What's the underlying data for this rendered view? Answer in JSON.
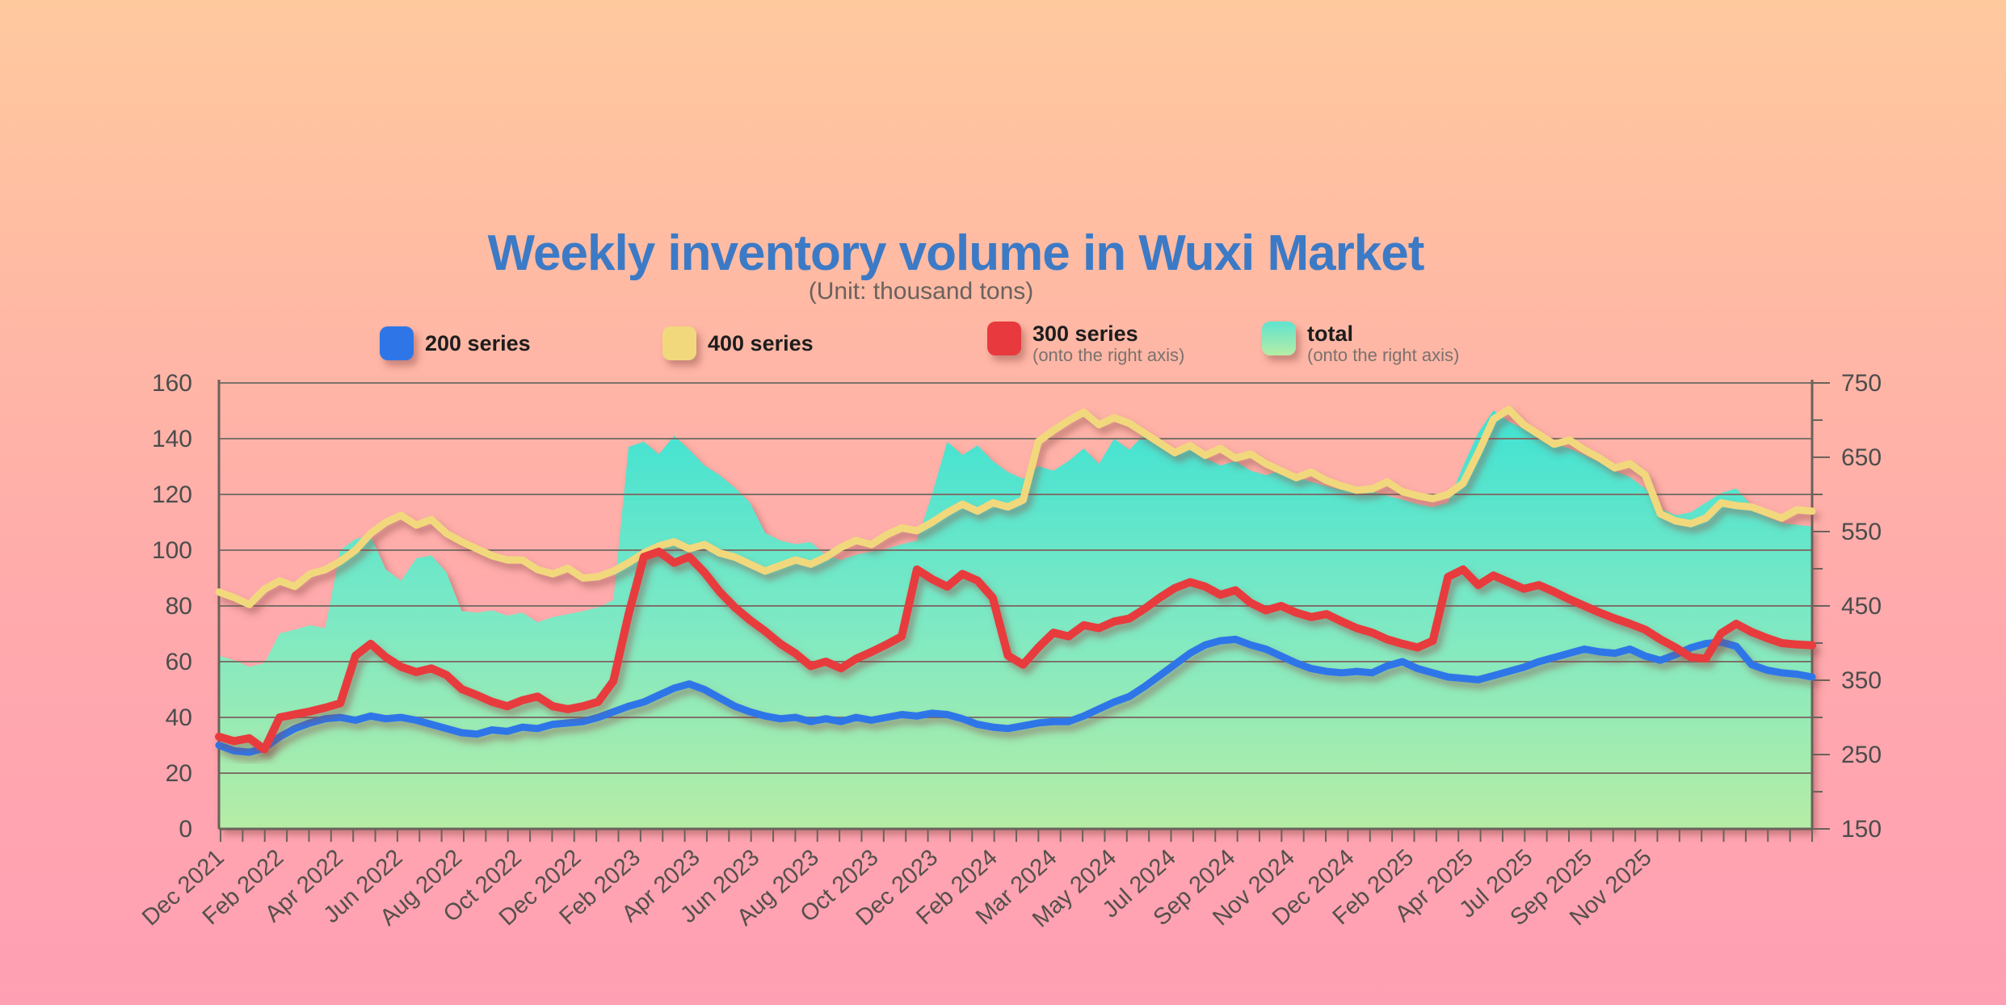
{
  "title": "Weekly inventory volume in Wuxi Market",
  "title_color": "#3c7ac6",
  "subtitle": "(Unit: thousand tons)",
  "legend": [
    {
      "label": "200 series",
      "sub": "",
      "color": "#2e76e8"
    },
    {
      "label": "400 series",
      "sub": "",
      "color": "#f2d87c"
    },
    {
      "label": "300 series",
      "sub": "(onto the right axis)",
      "color": "#e83a3e"
    },
    {
      "label": "total",
      "sub": "(onto the right axis)",
      "color": "#5fe3d0",
      "color2": "#b6eda5"
    }
  ],
  "chart_data": {
    "type": "line",
    "title": "Weekly inventory volume in Wuxi Market",
    "subtitle": "(Unit: thousand tons)",
    "grid": true,
    "legend_position": "top",
    "x_labels": [
      "Dec 2021",
      "Feb 2022",
      "Apr 2022",
      "Jun 2022",
      "Aug 2022",
      "Oct 2022",
      "Dec 2022",
      "Feb 2023",
      "Apr 2023",
      "Jun 2023",
      "Aug 2023",
      "Oct 2023",
      "Dec 2023",
      "Feb 2024",
      "Mar 2024",
      "May 2024",
      "Jul 2024",
      "Sep 2024",
      "Nov 2024",
      "Dec 2024",
      "Feb 2025",
      "Apr 2025",
      "Jul 2025",
      "Sep 2025",
      "Nov 2025"
    ],
    "left_axis": {
      "min": 0,
      "max": 160,
      "ticks": [
        0,
        20,
        40,
        60,
        80,
        100,
        120,
        140,
        160
      ]
    },
    "right_axis": {
      "min": 150,
      "max": 750,
      "ticks": [
        150,
        250,
        350,
        450,
        550,
        650,
        750
      ],
      "minor_step": 50
    },
    "series": [
      {
        "name": "total",
        "axis": "right",
        "kind": "area",
        "color_top": "#3fe2d3",
        "color_bottom": "#b6eda5",
        "values": [
          383,
          377,
          368,
          373,
          413,
          418,
          424,
          420,
          525,
          540,
          544,
          499,
          484,
          514,
          518,
          495,
          443,
          441,
          444,
          437,
          441,
          428,
          435,
          439,
          443,
          448,
          458,
          664,
          671,
          654,
          679,
          660,
          639,
          626,
          609,
          589,
          548,
          538,
          533,
          536,
          518,
          512,
          519,
          523,
          527,
          533,
          538,
          600,
          671,
          653,
          666,
          645,
          630,
          621,
          638,
          632,
          645,
          662,
          641,
          675,
          660,
          681,
          668,
          654,
          660,
          649,
          639,
          645,
          632,
          626,
          632,
          623,
          617,
          611,
          606,
          609,
          604,
          598,
          593,
          587,
          583,
          589,
          638,
          683,
          713,
          698,
          688,
          675,
          668,
          662,
          653,
          643,
          632,
          623,
          608,
          581,
          572,
          576,
          589,
          602,
          608,
          585,
          570,
          562,
          559,
          557
        ]
      },
      {
        "name": "400 series",
        "axis": "left",
        "kind": "line",
        "color": "#f2d87c",
        "values": [
          85,
          83,
          80.5,
          86,
          89,
          87,
          91.5,
          93,
          96,
          100,
          106,
          110,
          112.5,
          109,
          111,
          106,
          103,
          100.5,
          98,
          96.5,
          96.5,
          93,
          91.5,
          93.5,
          90,
          90.5,
          92.5,
          95.5,
          99,
          101.5,
          103,
          100.5,
          102,
          99,
          97.5,
          95,
          92.5,
          94.5,
          96.5,
          95,
          97.5,
          101,
          103.5,
          102,
          105.5,
          108,
          107,
          110,
          113.5,
          116.5,
          114,
          117,
          115.5,
          118,
          139,
          143,
          146.5,
          149.5,
          145,
          147.5,
          145.5,
          142,
          138.5,
          135,
          137.5,
          134,
          136.5,
          133,
          134.5,
          131,
          128.5,
          126,
          128,
          125,
          123,
          121.5,
          122,
          124.5,
          121,
          119.5,
          118.5,
          120,
          124,
          135,
          147,
          150.5,
          145,
          141.5,
          138,
          139.5,
          136,
          133,
          129.5,
          131,
          127,
          113,
          110.5,
          109.5,
          111.5,
          117,
          116,
          115.5,
          113.5,
          111.5,
          114.5,
          114
        ]
      },
      {
        "name": "200 series",
        "axis": "left",
        "kind": "line",
        "color": "#2e76e8",
        "values": [
          30,
          28,
          27.5,
          29,
          33,
          36,
          38,
          39.5,
          40,
          39,
          40.5,
          39.5,
          40,
          39,
          37.5,
          36,
          34.5,
          34,
          35.5,
          35,
          36.5,
          36,
          37.5,
          38,
          38.5,
          40,
          42,
          44,
          45.5,
          48,
          50.5,
          52,
          50,
          47,
          44,
          42,
          40.5,
          39.5,
          40,
          38.5,
          39.5,
          38.5,
          40,
          39,
          40,
          41,
          40.5,
          41.5,
          41,
          39.5,
          37.5,
          36.5,
          36,
          37,
          38,
          38.5,
          38.5,
          40.5,
          43,
          45.5,
          47.5,
          51,
          55,
          59,
          63,
          66,
          67.5,
          68,
          66,
          64.5,
          62,
          59.5,
          57.5,
          56.5,
          56,
          56.5,
          56,
          58.5,
          60,
          57.5,
          56,
          54.5,
          54,
          53.5,
          55,
          56.5,
          58,
          60,
          61.5,
          63,
          64.5,
          63.5,
          63,
          64.5,
          62,
          60.5,
          62.5,
          65,
          66.5,
          67,
          65.5,
          59,
          57,
          56,
          55.5,
          54.5
        ]
      },
      {
        "name": "300 series",
        "axis": "right",
        "kind": "line",
        "color": "#e83a3e",
        "values": [
          274,
          268,
          272,
          257,
          300,
          304,
          308,
          313,
          319,
          383,
          399,
          381,
          368,
          361,
          366,
          357,
          338,
          330,
          321,
          315,
          323,
          328,
          315,
          311,
          315,
          321,
          349,
          439,
          516,
          523,
          508,
          516,
          495,
          469,
          448,
          431,
          416,
          399,
          386,
          369,
          375,
          366,
          379,
          388,
          398,
          409,
          499,
          486,
          476,
          493,
          484,
          461,
          383,
          371,
          394,
          414,
          409,
          424,
          420,
          429,
          433,
          446,
          461,
          474,
          482,
          476,
          465,
          471,
          454,
          444,
          450,
          441,
          435,
          439,
          429,
          420,
          414,
          405,
          399,
          394,
          403,
          489,
          499,
          478,
          491,
          482,
          473,
          478,
          469,
          459,
          450,
          441,
          433,
          426,
          418,
          405,
          394,
          381,
          379,
          413,
          426,
          415,
          407,
          400,
          398,
          397
        ]
      }
    ]
  }
}
